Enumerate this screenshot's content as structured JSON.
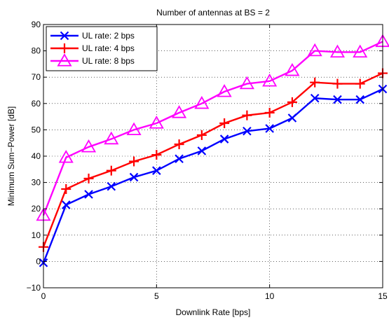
{
  "chart_data": {
    "type": "line",
    "title": "Number of antennas at BS = 2",
    "xlabel": "Downlink Rate [bps]",
    "ylabel": "Minimum Sum−Power [dB]",
    "xlim": [
      0,
      15
    ],
    "ylim": [
      -10,
      90
    ],
    "xticks": [
      0,
      5,
      10,
      15
    ],
    "yticks": [
      -10,
      0,
      10,
      20,
      30,
      40,
      50,
      60,
      70,
      80,
      90
    ],
    "grid": true,
    "legend_position": "top-left",
    "x": [
      0,
      1,
      2,
      3,
      4,
      5,
      6,
      7,
      8,
      9,
      10,
      11,
      12,
      13,
      14,
      15
    ],
    "series": [
      {
        "name": "UL rate: 2 bps",
        "color": "#0000ff",
        "marker": "x",
        "values": [
          -0.5,
          21.5,
          25.5,
          28.5,
          32,
          34.5,
          39,
          42,
          46.5,
          49.5,
          50.5,
          54.5,
          62,
          61.5,
          61.5,
          65.5
        ]
      },
      {
        "name": "UL rate: 4 bps",
        "color": "#ff0000",
        "marker": "+",
        "values": [
          5.5,
          27.5,
          31.5,
          34.5,
          38,
          40.5,
          44.5,
          48,
          52.5,
          55.5,
          56.5,
          60.5,
          68,
          67.5,
          67.5,
          71.5
        ]
      },
      {
        "name": "UL rate: 8 bps",
        "color": "#ff00ff",
        "marker": "triangle",
        "values": [
          17.5,
          39.5,
          43.5,
          46.5,
          50,
          52.5,
          56.5,
          60,
          64.5,
          67.5,
          68.5,
          72.5,
          80,
          79.5,
          79.5,
          83.5
        ]
      }
    ]
  }
}
